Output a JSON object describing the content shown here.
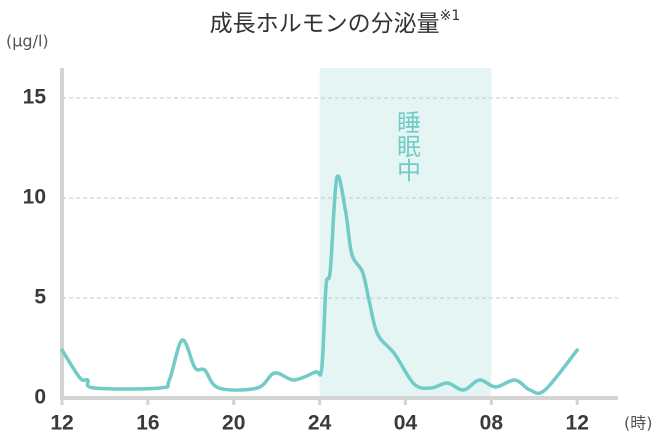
{
  "chart_data": {
    "type": "line",
    "title": "成長ホルモンの分泌量",
    "title_note": "※1",
    "y_label": "(μg/l)",
    "x_label": "(時)",
    "xlim": [
      12,
      37.9
    ],
    "ylim": [
      0,
      16.5
    ],
    "xticks": [
      12,
      16,
      20,
      24,
      {
        "value": 28,
        "label": "04"
      },
      {
        "value": 32,
        "label": "08"
      },
      {
        "value": 36,
        "label": "12"
      }
    ],
    "yticks": [
      0,
      5,
      10,
      15
    ],
    "grid": true,
    "shaded": {
      "start": 24,
      "end": 32,
      "label": "睡眠中",
      "color": "#e5f5f4"
    },
    "series": [
      {
        "color": "#72cbc6",
        "x": [
          12,
          12.84,
          13.2,
          13.5,
          16.56,
          17.0,
          17.6,
          18.2,
          18.65,
          19.3,
          21.1,
          21.9,
          22.8,
          23.8,
          24.1,
          24.3,
          24.5,
          24.8,
          25.2,
          25.5,
          26.0,
          26.3,
          26.7,
          27.5,
          28.4,
          29.2,
          29.95,
          30.7,
          31.45,
          32.2,
          33.1,
          33.8,
          34.5,
          36.0
        ],
        "values": [
          2.4,
          1.0,
          0.9,
          0.5,
          0.5,
          0.9,
          2.9,
          1.5,
          1.4,
          0.5,
          0.5,
          1.25,
          0.9,
          1.3,
          1.5,
          5.6,
          6.4,
          11.0,
          9.4,
          7.2,
          6.3,
          4.9,
          3.2,
          2.2,
          0.7,
          0.5,
          0.75,
          0.4,
          0.9,
          0.55,
          0.9,
          0.4,
          0.4,
          2.4
        ]
      }
    ]
  }
}
